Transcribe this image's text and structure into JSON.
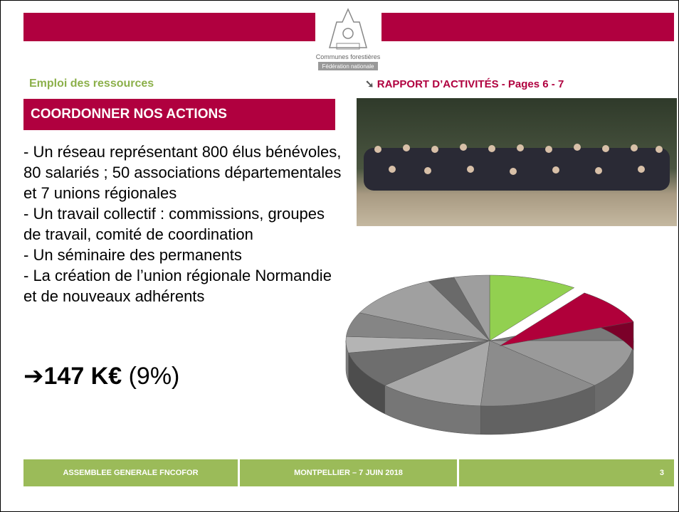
{
  "header": {
    "logo_line1": "Communes forestières",
    "logo_line2": "Fédération nationale"
  },
  "section_label": "Emploi des ressources",
  "reference": {
    "arrow": "➘",
    "text": "RAPPORT D’ACTIVITÉS - Pages 6 - 7"
  },
  "box_title": "COORDONNER NOS ACTIONS",
  "bullets": [
    "- Un réseau représentant 800 élus bénévoles, 80 salariés ; 50 associations départementales et 7 unions régionales",
    "- Un travail collectif : commissions, groupes de travail, comité de coordination",
    "- Un séminaire des permanents",
    "- La création de l’union régionale Normandie et de nouveaux adhérents"
  ],
  "highlight": {
    "arrow": "➔",
    "amount": "147 K€",
    "share": "(9%)"
  },
  "chart_data": {
    "type": "pie3d",
    "values": [
      10,
      9,
      6,
      12,
      14,
      12,
      9,
      4,
      6,
      11,
      3,
      4
    ],
    "colors": [
      "#92d050",
      "#b0003a",
      "#7a7a7a",
      "#9a9a9a",
      "#8c8c8c",
      "#a8a8a8",
      "#6e6e6e",
      "#b4b4b4",
      "#858585",
      "#a0a0a0",
      "#6a6a6a",
      "#9e9e9e"
    ],
    "explode": 1
  },
  "footer": {
    "left": "ASSEMBLEE GENERALE FNCOFOR",
    "center": "MONTPELLIER – 7 JUIN 2018",
    "page": "3"
  }
}
